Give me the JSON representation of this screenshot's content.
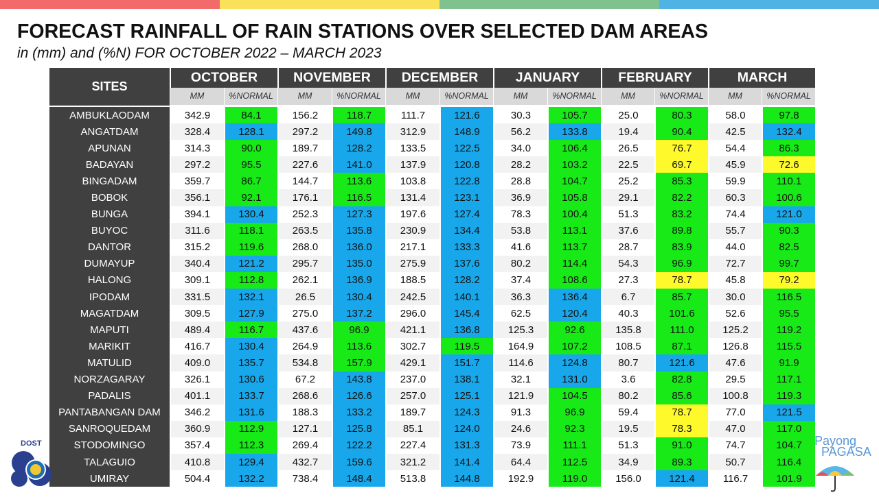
{
  "colors": {
    "bar": [
      "#f26a6a",
      "#f9e25a",
      "#7fc18f",
      "#4fb3e3"
    ],
    "header_bg": "#404040",
    "subheader_bg": "#d9d9d9",
    "above_normal": "#18a7ea",
    "near_normal": "#17ea17",
    "below_normal": "#fdf92a"
  },
  "title": "FORECAST RAINFALL OF RAIN STATIONS OVER SELECTED DAM AREAS",
  "subtitle": "in (mm) and (%N) FOR OCTOBER 2022 – MARCH 2023",
  "table": {
    "sites_header": "SITES",
    "months": [
      "OCTOBER",
      "NOVEMBER",
      "DECEMBER",
      "JANUARY",
      "FEBRUARY",
      "MARCH"
    ],
    "mm_label": "MM",
    "pct_label": "%NORMAL",
    "rows": [
      {
        "site": "AMBUKLAODAM",
        "v": [
          [
            "342.9",
            "84.1",
            "g"
          ],
          [
            "156.2",
            "118.7",
            "g"
          ],
          [
            "111.7",
            "121.6",
            "b"
          ],
          [
            "30.3",
            "105.7",
            "g"
          ],
          [
            "25.0",
            "80.3",
            "g"
          ],
          [
            "58.0",
            "97.8",
            "g"
          ]
        ]
      },
      {
        "site": "ANGATDAM",
        "v": [
          [
            "328.4",
            "128.1",
            "b"
          ],
          [
            "297.2",
            "149.8",
            "b"
          ],
          [
            "312.9",
            "148.9",
            "b"
          ],
          [
            "56.2",
            "133.8",
            "b"
          ],
          [
            "19.4",
            "90.4",
            "g"
          ],
          [
            "42.5",
            "132.4",
            "b"
          ]
        ]
      },
      {
        "site": "APUNAN",
        "v": [
          [
            "314.3",
            "90.0",
            "g"
          ],
          [
            "189.7",
            "128.2",
            "b"
          ],
          [
            "133.5",
            "122.5",
            "b"
          ],
          [
            "34.0",
            "106.4",
            "g"
          ],
          [
            "26.5",
            "76.7",
            "y"
          ],
          [
            "54.4",
            "86.3",
            "g"
          ]
        ]
      },
      {
        "site": "BADAYAN",
        "v": [
          [
            "297.2",
            "95.5",
            "g"
          ],
          [
            "227.6",
            "141.0",
            "b"
          ],
          [
            "137.9",
            "120.8",
            "b"
          ],
          [
            "28.2",
            "103.2",
            "g"
          ],
          [
            "22.5",
            "69.7",
            "y"
          ],
          [
            "45.9",
            "72.6",
            "y"
          ]
        ]
      },
      {
        "site": "BINGADAM",
        "v": [
          [
            "359.7",
            "86.7",
            "g"
          ],
          [
            "144.7",
            "113.6",
            "g"
          ],
          [
            "103.8",
            "122.8",
            "b"
          ],
          [
            "28.8",
            "104.7",
            "g"
          ],
          [
            "25.2",
            "85.3",
            "g"
          ],
          [
            "59.9",
            "110.1",
            "g"
          ]
        ]
      },
      {
        "site": "BOBOK",
        "v": [
          [
            "356.1",
            "92.1",
            "g"
          ],
          [
            "176.1",
            "116.5",
            "g"
          ],
          [
            "131.4",
            "123.1",
            "b"
          ],
          [
            "36.9",
            "105.8",
            "g"
          ],
          [
            "29.1",
            "82.2",
            "g"
          ],
          [
            "60.3",
            "100.6",
            "g"
          ]
        ]
      },
      {
        "site": "BUNGA",
        "v": [
          [
            "394.1",
            "130.4",
            "b"
          ],
          [
            "252.3",
            "127.3",
            "b"
          ],
          [
            "197.6",
            "127.4",
            "b"
          ],
          [
            "78.3",
            "100.4",
            "g"
          ],
          [
            "51.3",
            "83.2",
            "g"
          ],
          [
            "74.4",
            "121.0",
            "b"
          ]
        ]
      },
      {
        "site": "BUYOC",
        "v": [
          [
            "311.6",
            "118.1",
            "g"
          ],
          [
            "263.5",
            "135.8",
            "b"
          ],
          [
            "230.9",
            "134.4",
            "b"
          ],
          [
            "53.8",
            "113.1",
            "g"
          ],
          [
            "37.6",
            "89.8",
            "g"
          ],
          [
            "55.7",
            "90.3",
            "g"
          ]
        ]
      },
      {
        "site": "DANTOR",
        "v": [
          [
            "315.2",
            "119.6",
            "g"
          ],
          [
            "268.0",
            "136.0",
            "b"
          ],
          [
            "217.1",
            "133.3",
            "b"
          ],
          [
            "41.6",
            "113.7",
            "g"
          ],
          [
            "28.7",
            "83.9",
            "g"
          ],
          [
            "44.0",
            "82.5",
            "g"
          ]
        ]
      },
      {
        "site": "DUMAYUP",
        "v": [
          [
            "340.4",
            "121.2",
            "b"
          ],
          [
            "295.7",
            "135.0",
            "b"
          ],
          [
            "275.9",
            "137.6",
            "b"
          ],
          [
            "80.2",
            "114.4",
            "g"
          ],
          [
            "54.3",
            "96.9",
            "g"
          ],
          [
            "72.7",
            "99.7",
            "g"
          ]
        ]
      },
      {
        "site": "HALONG",
        "v": [
          [
            "309.1",
            "112.8",
            "g"
          ],
          [
            "262.1",
            "136.9",
            "b"
          ],
          [
            "188.5",
            "128.2",
            "b"
          ],
          [
            "37.4",
            "108.6",
            "g"
          ],
          [
            "27.3",
            "78.7",
            "y"
          ],
          [
            "45.8",
            "79.2",
            "y"
          ]
        ]
      },
      {
        "site": "IPODAM",
        "v": [
          [
            "331.5",
            "132.1",
            "b"
          ],
          [
            "26.5",
            "130.4",
            "b"
          ],
          [
            "242.5",
            "140.1",
            "b"
          ],
          [
            "36.3",
            "136.4",
            "b"
          ],
          [
            "6.7",
            "85.7",
            "g"
          ],
          [
            "30.0",
            "116.5",
            "g"
          ]
        ]
      },
      {
        "site": "MAGATDAM",
        "v": [
          [
            "309.5",
            "127.9",
            "b"
          ],
          [
            "275.0",
            "137.2",
            "b"
          ],
          [
            "296.0",
            "145.4",
            "b"
          ],
          [
            "62.5",
            "120.4",
            "b"
          ],
          [
            "40.3",
            "101.6",
            "g"
          ],
          [
            "52.6",
            "95.5",
            "g"
          ]
        ]
      },
      {
        "site": "MAPUTI",
        "v": [
          [
            "489.4",
            "116.7",
            "g"
          ],
          [
            "437.6",
            "96.9",
            "g"
          ],
          [
            "421.1",
            "136.8",
            "b"
          ],
          [
            "125.3",
            "92.6",
            "g"
          ],
          [
            "135.8",
            "111.0",
            "g"
          ],
          [
            "125.2",
            "119.2",
            "g"
          ]
        ]
      },
      {
        "site": "MARIKIT",
        "v": [
          [
            "416.7",
            "130.4",
            "b"
          ],
          [
            "264.9",
            "113.6",
            "g"
          ],
          [
            "302.7",
            "119.5",
            "g"
          ],
          [
            "164.9",
            "107.2",
            "g"
          ],
          [
            "108.5",
            "87.1",
            "g"
          ],
          [
            "126.8",
            "115.5",
            "g"
          ]
        ]
      },
      {
        "site": "MATULID",
        "v": [
          [
            "409.0",
            "135.7",
            "b"
          ],
          [
            "534.8",
            "157.9",
            "g"
          ],
          [
            "429.1",
            "151.7",
            "b"
          ],
          [
            "114.6",
            "124.8",
            "b"
          ],
          [
            "80.7",
            "121.6",
            "b"
          ],
          [
            "47.6",
            "91.9",
            "g"
          ]
        ]
      },
      {
        "site": "NORZAGARAY",
        "v": [
          [
            "326.1",
            "130.6",
            "b"
          ],
          [
            "67.2",
            "143.8",
            "b"
          ],
          [
            "237.0",
            "138.1",
            "b"
          ],
          [
            "32.1",
            "131.0",
            "b"
          ],
          [
            "3.6",
            "82.8",
            "g"
          ],
          [
            "29.5",
            "117.1",
            "g"
          ]
        ]
      },
      {
        "site": "PADALIS",
        "v": [
          [
            "401.1",
            "133.7",
            "b"
          ],
          [
            "268.6",
            "126.6",
            "b"
          ],
          [
            "257.0",
            "125.1",
            "b"
          ],
          [
            "121.9",
            "104.5",
            "g"
          ],
          [
            "80.2",
            "85.6",
            "g"
          ],
          [
            "100.8",
            "119.3",
            "g"
          ]
        ]
      },
      {
        "site": "PANTABANGAN DAM",
        "v": [
          [
            "346.2",
            "131.6",
            "b"
          ],
          [
            "188.3",
            "133.2",
            "b"
          ],
          [
            "189.7",
            "124.3",
            "b"
          ],
          [
            "91.3",
            "96.9",
            "g"
          ],
          [
            "59.4",
            "78.7",
            "y"
          ],
          [
            "77.0",
            "121.5",
            "b"
          ]
        ]
      },
      {
        "site": "SANROQUEDAM",
        "v": [
          [
            "360.9",
            "112.9",
            "g"
          ],
          [
            "127.1",
            "125.8",
            "b"
          ],
          [
            "85.1",
            "124.0",
            "b"
          ],
          [
            "24.6",
            "92.3",
            "g"
          ],
          [
            "19.5",
            "78.3",
            "y"
          ],
          [
            "47.0",
            "117.0",
            "g"
          ]
        ]
      },
      {
        "site": "STODOMINGO",
        "v": [
          [
            "357.4",
            "112.3",
            "g"
          ],
          [
            "269.4",
            "122.2",
            "b"
          ],
          [
            "227.4",
            "131.3",
            "b"
          ],
          [
            "73.9",
            "111.1",
            "g"
          ],
          [
            "51.3",
            "91.0",
            "g"
          ],
          [
            "74.7",
            "104.7",
            "g"
          ]
        ]
      },
      {
        "site": "TALAGUIO",
        "v": [
          [
            "410.8",
            "129.4",
            "b"
          ],
          [
            "432.7",
            "159.6",
            "b"
          ],
          [
            "321.2",
            "141.4",
            "b"
          ],
          [
            "64.4",
            "112.5",
            "g"
          ],
          [
            "34.9",
            "89.3",
            "g"
          ],
          [
            "50.7",
            "116.4",
            "g"
          ]
        ]
      },
      {
        "site": "UMIRAY",
        "v": [
          [
            "504.4",
            "132.2",
            "b"
          ],
          [
            "738.4",
            "148.4",
            "b"
          ],
          [
            "513.8",
            "144.8",
            "b"
          ],
          [
            "192.9",
            "119.0",
            "g"
          ],
          [
            "156.0",
            "121.4",
            "b"
          ],
          [
            "116.7",
            "101.9",
            "g"
          ]
        ]
      }
    ]
  },
  "logos": {
    "left_text": "DOST",
    "right_text_1": "Payong",
    "right_text_2": "PAGASA"
  }
}
